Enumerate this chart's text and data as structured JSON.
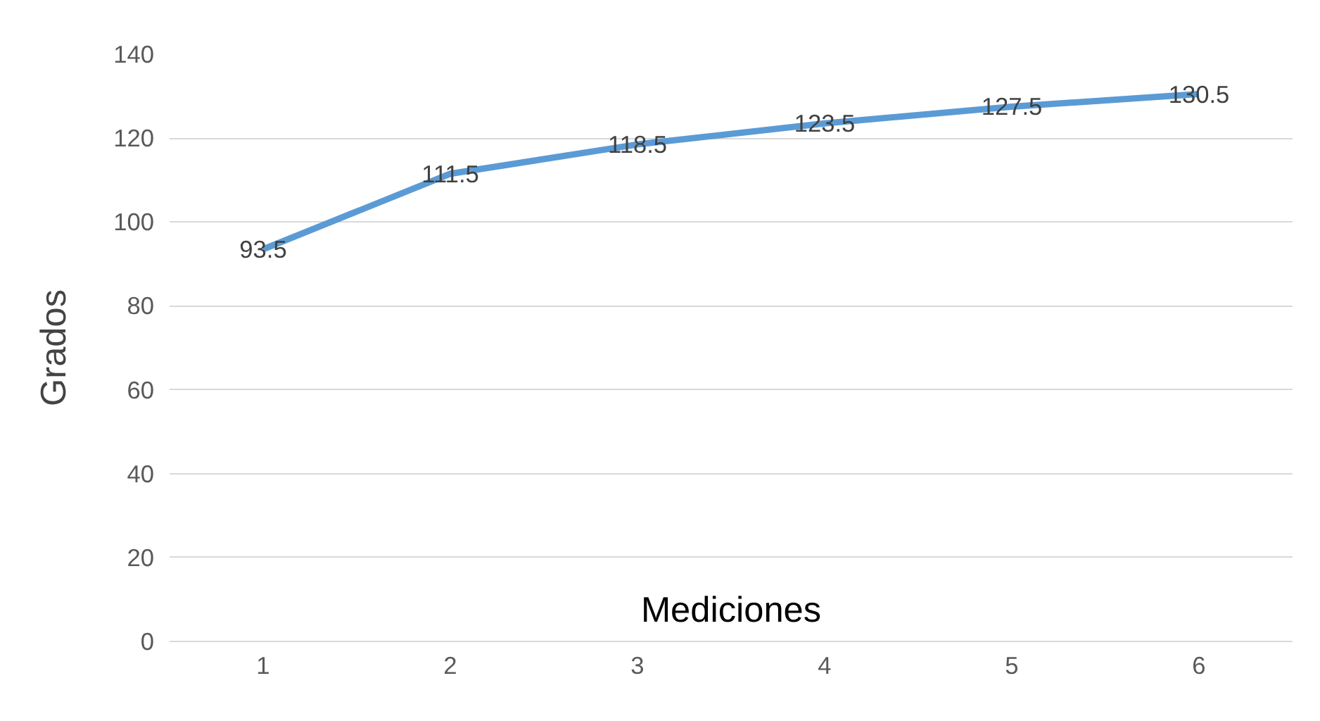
{
  "chart_data": {
    "type": "line",
    "xlabel": "Mediciones",
    "ylabel": "Grados",
    "categories": [
      "1",
      "2",
      "3",
      "4",
      "5",
      "6"
    ],
    "series": [
      {
        "color": "#5b9bd5",
        "values": [
          93.5,
          111.5,
          118.5,
          123.5,
          127.5,
          130.5
        ]
      }
    ],
    "ylim": [
      0,
      140
    ],
    "yticks": [
      0,
      20,
      40,
      60,
      80,
      100,
      120,
      140
    ],
    "grid": "y",
    "data_labels": true,
    "marker": "none",
    "line_style": "solid"
  }
}
